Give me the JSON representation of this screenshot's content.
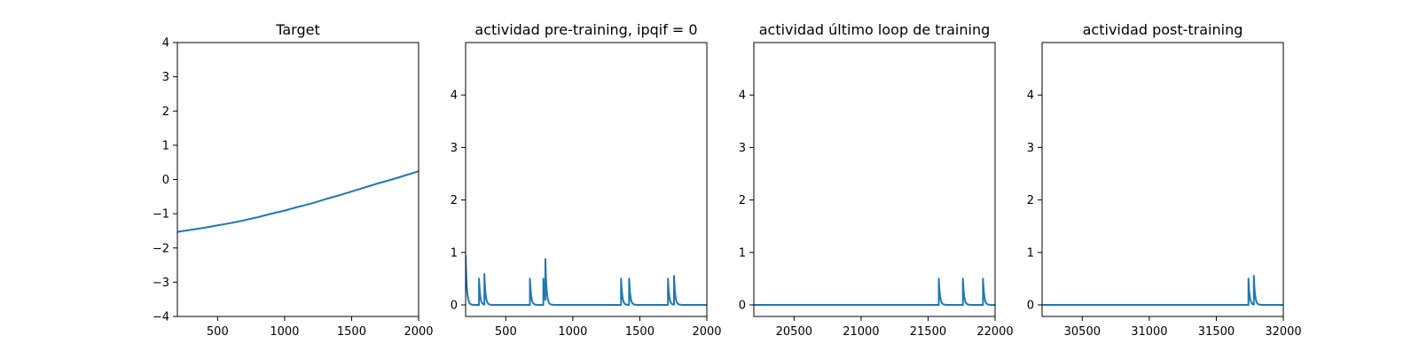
{
  "chart_data": [
    {
      "type": "line",
      "title": "Target",
      "xlabel": "",
      "ylabel": "",
      "xlim": [
        200,
        2000
      ],
      "ylim": [
        -4,
        4
      ],
      "xticks": [
        500,
        1000,
        1500,
        2000
      ],
      "yticks": [
        -4,
        -3,
        -2,
        -1,
        0,
        1,
        2,
        3,
        4
      ],
      "grid": false,
      "color": "#1f77b4",
      "series": [
        {
          "x": [
            200,
            300,
            400,
            500,
            600,
            700,
            800,
            900,
            1000,
            1100,
            1200,
            1300,
            1400,
            1500,
            1600,
            1700,
            1800,
            1900,
            2000
          ],
          "y": [
            -1.53,
            -1.47,
            -1.41,
            -1.34,
            -1.27,
            -1.19,
            -1.1,
            -1.0,
            -0.91,
            -0.8,
            -0.7,
            -0.58,
            -0.47,
            -0.35,
            -0.23,
            -0.11,
            0.0,
            0.12,
            0.24
          ]
        }
      ]
    },
    {
      "type": "line",
      "title": "actividad pre-training, ipqif = 0",
      "xlabel": "",
      "ylabel": "",
      "xlim": [
        200,
        2000
      ],
      "ylim": [
        -0.22,
        5.0
      ],
      "xticks": [
        500,
        1000,
        1500,
        2000
      ],
      "yticks": [
        0,
        1,
        2,
        3,
        4
      ],
      "grid": false,
      "color": "#1f77b4",
      "series": [
        {
          "initial": 0.95,
          "spikes": [
            [
              300,
              0.5
            ],
            [
              340,
              0.58
            ],
            [
              680,
              0.5
            ],
            [
              780,
              0.5
            ],
            [
              795,
              0.78
            ],
            [
              1360,
              0.5
            ],
            [
              1420,
              0.5
            ],
            [
              1710,
              0.5
            ],
            [
              1755,
              0.55
            ]
          ]
        }
      ]
    },
    {
      "type": "line",
      "title": "actividad último loop de training",
      "xlabel": "",
      "ylabel": "",
      "xlim": [
        20200,
        22000
      ],
      "ylim": [
        -0.22,
        5.0
      ],
      "xticks": [
        20500,
        21000,
        21500,
        22000
      ],
      "yticks": [
        0,
        1,
        2,
        3,
        4
      ],
      "grid": false,
      "color": "#1f77b4",
      "series": [
        {
          "initial": 0,
          "spikes": [
            [
              21580,
              0.5
            ],
            [
              21760,
              0.5
            ],
            [
              21910,
              0.5
            ]
          ]
        }
      ]
    },
    {
      "type": "line",
      "title": "actividad post-training",
      "xlabel": "",
      "ylabel": "",
      "xlim": [
        30200,
        32000
      ],
      "ylim": [
        -0.22,
        5.0
      ],
      "xticks": [
        30500,
        31000,
        31500,
        32000
      ],
      "yticks": [
        0,
        1,
        2,
        3,
        4
      ],
      "grid": false,
      "color": "#1f77b4",
      "series": [
        {
          "initial": 0,
          "spikes": [
            [
              31740,
              0.5
            ],
            [
              31780,
              0.55
            ]
          ]
        }
      ]
    }
  ]
}
